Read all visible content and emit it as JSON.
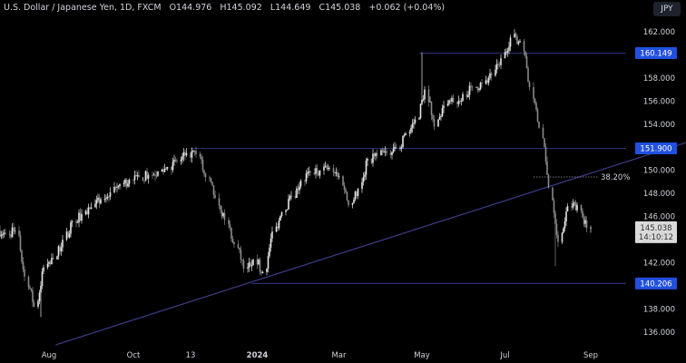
{
  "header": {
    "symbol": "U.S. Dollar / Japanese Yen, 1D, FXCM",
    "open": "O144.976",
    "high": "H145.092",
    "low": "L144.649",
    "close": "C145.038",
    "change": "+0.062 (+0.04%)"
  },
  "currency_button": "JPY",
  "colors": {
    "background": "#000000",
    "candle_up": "#e6e6e6",
    "candle_down": "#8a8a8a",
    "level_line": "#2a2f6e",
    "level_label": "#2150e0",
    "trendline": "#3b3f86",
    "text": "#d1d4dc"
  },
  "chart_data": {
    "type": "candlestick",
    "title": "U.S. Dollar / Japanese Yen, 1D, FXCM",
    "ylim": [
      134.5,
      164.75
    ],
    "xlim": [
      "2023-06-26",
      "2024-09-28"
    ],
    "y_ticks": [
      "136.000",
      "138.000",
      "142.000",
      "146.000",
      "148.000",
      "150.000",
      "154.000",
      "156.000",
      "158.000",
      "162.000"
    ],
    "y_tick_values": [
      136,
      138,
      142,
      146,
      148,
      150,
      154,
      156,
      158,
      162
    ],
    "x_ticks": [
      {
        "label": "Aug",
        "date": "2023-08-01"
      },
      {
        "label": "Oct",
        "date": "2023-10-02"
      },
      {
        "label": "13",
        "date": "2023-11-13"
      },
      {
        "label": "2024",
        "date": "2024-01-01",
        "bold": true
      },
      {
        "label": "Mar",
        "date": "2024-03-01"
      },
      {
        "label": "May",
        "date": "2024-05-01"
      },
      {
        "label": "Jul",
        "date": "2024-07-01"
      },
      {
        "label": "Sep",
        "date": "2024-09-02"
      }
    ],
    "grid": false,
    "weekly_dates": [
      "2023-06-26",
      "2023-07-03",
      "2023-07-10",
      "2023-07-17",
      "2023-07-24",
      "2023-07-31",
      "2023-08-07",
      "2023-08-14",
      "2023-08-21",
      "2023-08-28",
      "2023-09-04",
      "2023-09-11",
      "2023-09-18",
      "2023-09-25",
      "2023-10-02",
      "2023-10-09",
      "2023-10-16",
      "2023-10-23",
      "2023-10-30",
      "2023-11-06",
      "2023-11-13",
      "2023-11-20",
      "2023-11-27",
      "2023-12-04",
      "2023-12-11",
      "2023-12-18",
      "2023-12-25",
      "2024-01-01",
      "2024-01-08",
      "2024-01-15",
      "2024-01-22",
      "2024-01-29",
      "2024-02-05",
      "2024-02-12",
      "2024-02-19",
      "2024-02-26",
      "2024-03-04",
      "2024-03-11",
      "2024-03-18",
      "2024-03-25",
      "2024-04-01",
      "2024-04-08",
      "2024-04-15",
      "2024-04-22",
      "2024-04-29",
      "2024-05-06",
      "2024-05-13",
      "2024-05-20",
      "2024-05-27",
      "2024-06-03",
      "2024-06-10",
      "2024-06-17",
      "2024-06-24",
      "2024-07-01",
      "2024-07-08",
      "2024-07-15",
      "2024-07-22",
      "2024-07-29",
      "2024-08-05",
      "2024-08-12",
      "2024-08-19",
      "2024-08-26",
      "2024-09-02"
    ],
    "weekly_close": [
      144.5,
      144.8,
      140.8,
      138.2,
      141.6,
      142.3,
      144.0,
      145.6,
      146.2,
      146.8,
      147.5,
      148.1,
      148.8,
      149.2,
      149.4,
      149.6,
      149.9,
      150.3,
      150.8,
      151.5,
      151.4,
      149.4,
      147.6,
      145.7,
      143.6,
      141.5,
      142.3,
      141.2,
      144.7,
      146.4,
      147.8,
      149.1,
      149.8,
      150.0,
      150.2,
      149.5,
      147.0,
      148.4,
      151.0,
      151.3,
      151.5,
      151.9,
      153.2,
      154.4,
      157.0,
      153.8,
      155.6,
      155.9,
      156.6,
      157.2,
      157.5,
      158.2,
      159.7,
      161.5,
      161.2,
      157.2,
      153.7,
      148.5,
      143.8,
      146.9,
      147.0,
      145.0,
      145.038
    ],
    "notable_wicks": [
      {
        "date": "2024-04-29",
        "high": 160.2
      },
      {
        "date": "2024-08-05",
        "low": 141.7
      },
      {
        "date": "2023-07-24",
        "low": 137.3
      }
    ],
    "levels": [
      {
        "label": "160.149",
        "value": 160.149,
        "from": "2024-04-29"
      },
      {
        "label": "151.900",
        "value": 151.9,
        "from": "2023-11-13"
      },
      {
        "label": "140.206",
        "value": 140.206,
        "from": "2023-12-28"
      }
    ],
    "trendline": {
      "from": {
        "date": "2023-08-06",
        "value": 134.9
      },
      "to": {
        "date": "2024-11-11",
        "value": 152.4
      }
    },
    "fib_level": {
      "label": "38.20%",
      "value": 149.43,
      "from": "2024-07-22",
      "to": "2024-09-08"
    },
    "last_price": {
      "label": "145.038",
      "countdown": "14:10:12",
      "value": 145.038
    }
  }
}
